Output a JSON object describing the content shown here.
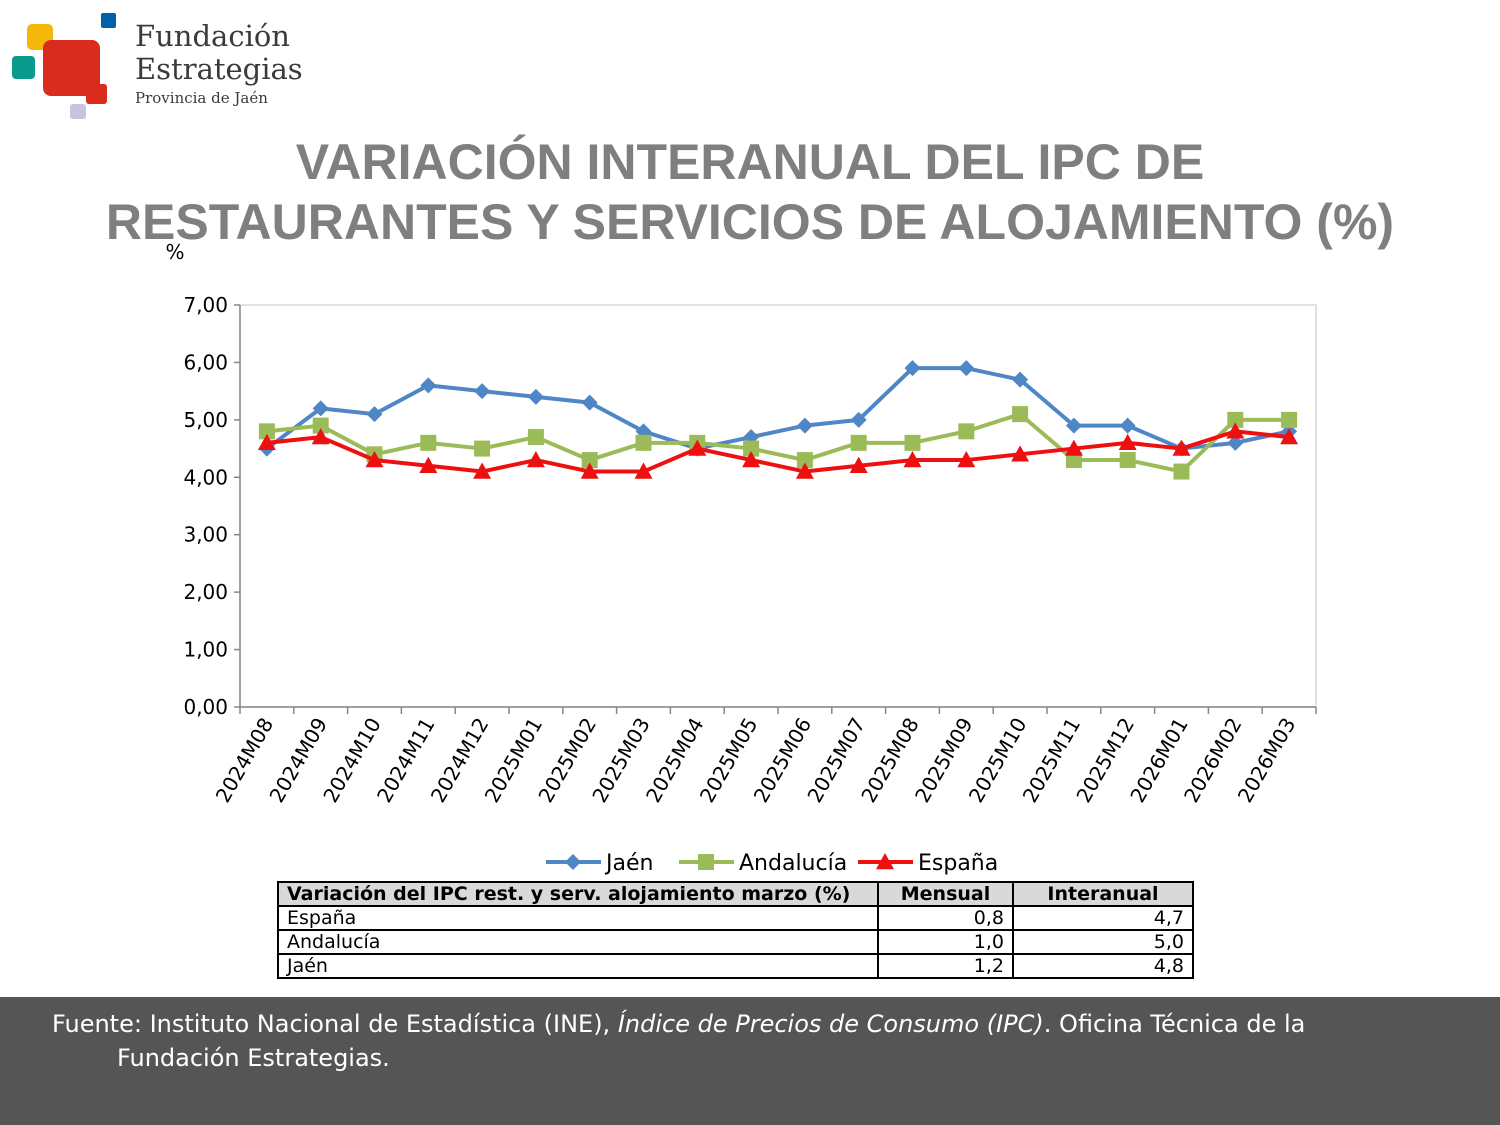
{
  "logo": {
    "line1": "Fundación",
    "line2": "Estrategias",
    "line3": "Provincia de Jaén",
    "colors": [
      "#f5b80a",
      "#0062a8",
      "#0a9a8e",
      "#d92b1e",
      "#c9c3dd"
    ]
  },
  "title": {
    "line1": "VARIACIÓN INTERANUAL DEL IPC DE",
    "line2": "RESTAURANTES Y SERVICIOS DE ALOJAMIENTO (%)"
  },
  "chart_data": {
    "type": "line",
    "ylabel": "%",
    "ylim": [
      0,
      7
    ],
    "yticks": [
      "0,00",
      "1,00",
      "2,00",
      "3,00",
      "4,00",
      "5,00",
      "6,00",
      "7,00"
    ],
    "categories": [
      "2024M08",
      "2024M09",
      "2024M10",
      "2024M11",
      "2024M12",
      "2025M01",
      "2025M02",
      "2025M03",
      "2025M04",
      "2025M05",
      "2025M06",
      "2025M07",
      "2025M08",
      "2025M09",
      "2025M10",
      "2025M11",
      "2025M12",
      "2026M01",
      "2026M02",
      "2026M03"
    ],
    "series": [
      {
        "name": "Jaén",
        "color": "#4f86c6",
        "marker": "diamond",
        "values": [
          4.5,
          5.2,
          5.1,
          5.6,
          5.5,
          5.4,
          5.3,
          4.8,
          4.5,
          4.7,
          4.9,
          5.0,
          5.9,
          5.9,
          5.7,
          4.9,
          4.9,
          4.5,
          4.6,
          4.8
        ]
      },
      {
        "name": "Andalucía",
        "color": "#9bbb59",
        "marker": "square",
        "values": [
          4.8,
          4.9,
          4.4,
          4.6,
          4.5,
          4.7,
          4.3,
          4.6,
          4.6,
          4.5,
          4.3,
          4.6,
          4.6,
          4.8,
          5.1,
          4.3,
          4.3,
          4.1,
          5.0,
          5.0
        ]
      },
      {
        "name": "España",
        "color": "#ee1010",
        "marker": "triangle",
        "values": [
          4.6,
          4.7,
          4.3,
          4.2,
          4.1,
          4.3,
          4.1,
          4.1,
          4.5,
          4.3,
          4.1,
          4.2,
          4.3,
          4.3,
          4.4,
          4.5,
          4.6,
          4.5,
          4.8,
          4.7
        ]
      }
    ],
    "grid": false,
    "legend_position": "bottom"
  },
  "table": {
    "headers": [
      "Variación del IPC rest. y serv. alojamiento marzo (%)",
      "Mensual",
      "Interanual"
    ],
    "rows": [
      [
        "España",
        "0,8",
        "4,7"
      ],
      [
        "Andalucía",
        "1,0",
        "5,0"
      ],
      [
        "Jaén",
        "1,2",
        "4,8"
      ]
    ]
  },
  "footer": {
    "part1": "Fuente: Instituto Nacional de Estadística (INE), ",
    "part2": "Índice de Precios de Consumo (IPC)",
    "part3": ". Oficina Técnica de la ",
    "part4": "Fundación Estrategias."
  }
}
